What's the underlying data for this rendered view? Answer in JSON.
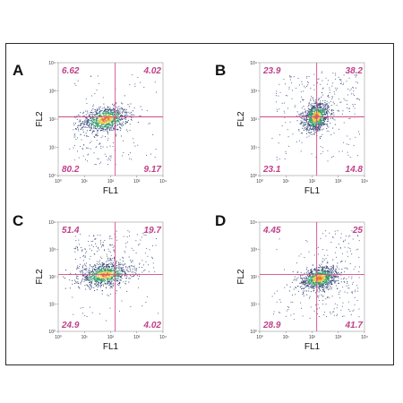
{
  "colors": {
    "quadrant_lines": "#d24b8a",
    "quadrant_text": "#c0408a",
    "frame": "#2a2a2a",
    "density_low": "#3a4a7a",
    "density_mid": "#2e9a6a",
    "density_high": "#e8c83a",
    "density_peak": "#e8702a"
  },
  "chart_data": [
    {
      "type": "scatter",
      "panel": "A",
      "xlabel": "FL1",
      "ylabel": "FL2",
      "xscale": "log",
      "yscale": "log",
      "xlim": [
        1,
        10000
      ],
      "ylim": [
        1,
        10000
      ],
      "x_ticks": [
        "10⁰",
        "10¹",
        "10²",
        "10³",
        "10⁴"
      ],
      "y_ticks": [
        "10⁰",
        "10¹",
        "10²",
        "10³",
        "10⁴"
      ],
      "quadrant_gate": [
        150,
        120
      ],
      "quadrants": {
        "top_left": "6.62",
        "top_right": "4.02",
        "bottom_left": "80.2",
        "bottom_right": "9.17"
      },
      "population_center": [
        60,
        100
      ],
      "population_spread_decades": [
        0.45,
        0.22
      ]
    },
    {
      "type": "scatter",
      "panel": "B",
      "xlabel": "FL1",
      "ylabel": "FL2",
      "xscale": "log",
      "yscale": "log",
      "xlim": [
        1,
        10000
      ],
      "ylim": [
        1,
        10000
      ],
      "x_ticks": [
        "10⁰",
        "10¹",
        "10²",
        "10³",
        "10⁴"
      ],
      "y_ticks": [
        "10⁰",
        "10¹",
        "10²",
        "10³",
        "10⁴"
      ],
      "quadrant_gate": [
        150,
        120
      ],
      "quadrants": {
        "top_left": "23.9",
        "top_right": "38.2",
        "bottom_left": "23.1",
        "bottom_right": "14.8"
      },
      "population_center": [
        140,
        125
      ],
      "population_spread_decades": [
        0.25,
        0.25
      ]
    },
    {
      "type": "scatter",
      "panel": "C",
      "xlabel": "FL1",
      "ylabel": "FL2",
      "xscale": "log",
      "yscale": "log",
      "xlim": [
        1,
        10000
      ],
      "ylim": [
        1,
        10000
      ],
      "x_ticks": [
        "10⁰",
        "10¹",
        "10²",
        "10³",
        "10⁴"
      ],
      "y_ticks": [
        "10⁰",
        "10¹",
        "10²",
        "10³",
        "10⁴"
      ],
      "quadrant_gate": [
        150,
        120
      ],
      "quadrants": {
        "top_left": "51.4",
        "top_right": "19.7",
        "bottom_left": "24.9",
        "bottom_right": "4.02"
      },
      "population_center": [
        60,
        120
      ],
      "population_spread_decades": [
        0.5,
        0.2
      ]
    },
    {
      "type": "scatter",
      "panel": "D",
      "xlabel": "FL1",
      "ylabel": "FL2",
      "xscale": "log",
      "yscale": "log",
      "xlim": [
        1,
        10000
      ],
      "ylim": [
        1,
        10000
      ],
      "x_ticks": [
        "10⁰",
        "10¹",
        "10²",
        "10³",
        "10⁴"
      ],
      "y_ticks": [
        "10⁰",
        "10¹",
        "10²",
        "10³",
        "10⁴"
      ],
      "quadrant_gate": [
        150,
        120
      ],
      "quadrants": {
        "top_left": "4.45",
        "top_right": "25",
        "bottom_left": "28.9",
        "bottom_right": "41.7"
      },
      "population_center": [
        180,
        90
      ],
      "population_spread_decades": [
        0.35,
        0.2
      ]
    }
  ]
}
